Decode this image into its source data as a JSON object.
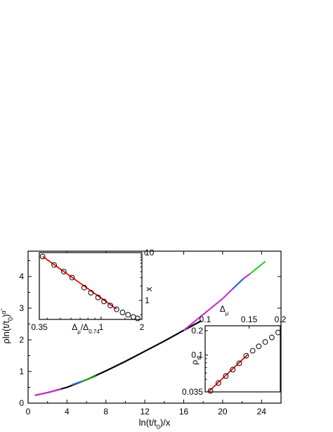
{
  "chart_data": [
    {
      "id": "main",
      "type": "line",
      "xlabel": "ln(t/t",
      "xlabel_sub": "0",
      "xlabel_tail": ")/x",
      "ylabel": "ρln(t/t",
      "ylabel_sub": "0",
      "ylabel_sup": "α̃",
      "ylabel_tail": ")",
      "xlim": [
        0,
        26
      ],
      "ylim": [
        0,
        4.8
      ],
      "xticks": [
        0,
        4,
        8,
        12,
        16,
        20,
        24
      ],
      "yticks": [
        0,
        1,
        2,
        3,
        4
      ],
      "series": [
        {
          "color": "#000000",
          "x": [
            0.7,
            2,
            4,
            6,
            8,
            10,
            12,
            14,
            16,
            17.8
          ],
          "y": [
            0.25,
            0.33,
            0.5,
            0.74,
            1.02,
            1.32,
            1.64,
            1.96,
            2.3,
            2.6
          ]
        },
        {
          "color": "#cc33cc",
          "x": [
            0.7,
            2,
            3.4
          ],
          "y": [
            0.25,
            0.33,
            0.44
          ]
        },
        {
          "color": "#2f6fd6",
          "x": [
            4.5,
            6
          ],
          "y": [
            0.58,
            0.74
          ]
        },
        {
          "color": "#22aa22",
          "x": [
            5.5,
            7
          ],
          "y": [
            0.68,
            0.86
          ]
        },
        {
          "color": "#cc33cc",
          "x": [
            16,
            18,
            20,
            22
          ],
          "y": [
            2.3,
            2.8,
            3.3,
            3.9
          ]
        },
        {
          "color": "#2f6fd6",
          "x": [
            21,
            22.2
          ],
          "y": [
            3.6,
            3.95
          ]
        },
        {
          "color": "#cc33cc",
          "x": [
            22.2,
            22.8
          ],
          "y": [
            3.95,
            4.08
          ]
        },
        {
          "color": "#33cc33",
          "x": [
            22.8,
            24.4
          ],
          "y": [
            4.08,
            4.48
          ]
        }
      ]
    },
    {
      "id": "inset_left",
      "type": "scatter",
      "xscale": "log",
      "yscale": "log",
      "xlabel": "Δ",
      "xlabel_sub": "μ",
      "xlabel_mid": "/Δ",
      "xlabel_sub2": "0.74",
      "ylabel": "x",
      "xlim": [
        0.35,
        2
      ],
      "ylim": [
        0.4,
        10
      ],
      "xticks": [
        0.35,
        1,
        2
      ],
      "yticks": [
        1,
        10
      ],
      "points": {
        "x": [
          0.37,
          0.45,
          0.53,
          0.61,
          0.75,
          0.84,
          0.95,
          1.05,
          1.17,
          1.3,
          1.44,
          1.58,
          1.73,
          1.86
        ],
        "y": [
          8.3,
          5.5,
          4.0,
          3.0,
          1.85,
          1.45,
          1.15,
          0.95,
          0.78,
          0.65,
          0.56,
          0.5,
          0.45,
          0.42
        ]
      },
      "fit": {
        "color": "#ff0000",
        "x": [
          0.37,
          1.3
        ],
        "y": [
          8.3,
          0.66
        ]
      }
    },
    {
      "id": "inset_right",
      "type": "scatter",
      "xscale": "log",
      "yscale": "log",
      "xlabel": "Δ",
      "xlabel_sub": "μ",
      "ylabel": "ρ",
      "ylabel_sub": "st",
      "xlim": [
        0.1,
        0.2
      ],
      "ylim": [
        0.035,
        0.23
      ],
      "xticks": [
        0.1,
        0.15,
        0.2
      ],
      "yticks": [
        0.035,
        0.1,
        0.2
      ],
      "points": {
        "x": [
          0.105,
          0.113,
          0.121,
          0.129,
          0.137,
          0.146,
          0.155,
          0.164,
          0.174,
          0.185,
          0.196
        ],
        "y": [
          0.036,
          0.045,
          0.055,
          0.066,
          0.079,
          0.098,
          0.113,
          0.128,
          0.145,
          0.165,
          0.19
        ]
      },
      "fit": {
        "color": "#ff0000",
        "x": [
          0.103,
          0.148
        ],
        "y": [
          0.035,
          0.101
        ]
      }
    }
  ]
}
